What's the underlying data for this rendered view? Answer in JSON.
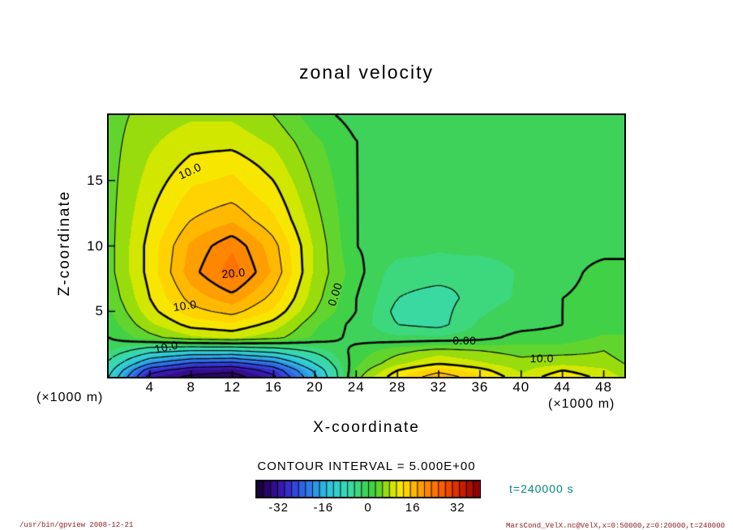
{
  "title": "zonal velocity",
  "colors": {
    "text": "#000000",
    "plot_border": "#000000",
    "contour_line": "#000000",
    "time_label": "#008878",
    "footer": "#8b2020",
    "background": "#ffffff"
  },
  "legend": {
    "contour_interval_text": "CONTOUR INTERVAL =  5.000E+00",
    "time_label": "t=240000 s"
  },
  "footer": {
    "left": "/usr/bin/gpview  2008-12-21",
    "right": "MarsCond_VelX.nc@VelX,x=0:50000,z=0:20000,t=240000"
  },
  "chart_data": {
    "type": "heatmap",
    "subtype": "filled-contour",
    "title": "zonal velocity",
    "xlabel": "X-coordinate",
    "ylabel": "Z-coordinate",
    "x_unit_label": "(×1000 m)",
    "z_unit_label": "(×1000 m)",
    "xlim": [
      0,
      50
    ],
    "zlim": [
      0,
      20
    ],
    "x_ticks": [
      4,
      8,
      12,
      16,
      20,
      24,
      28,
      32,
      36,
      40,
      44,
      48
    ],
    "z_ticks": [
      5,
      10,
      15
    ],
    "contour_interval": 5.0,
    "tone_min": -40,
    "tone_max": 40,
    "tone_step": 2.5,
    "colorbar_ticks": [
      -32,
      -16,
      0,
      16,
      32
    ],
    "x": [
      0,
      4,
      8,
      12,
      16,
      20,
      24,
      28,
      32,
      36,
      40,
      44,
      48,
      50
    ],
    "z": [
      0,
      0.5,
      1,
      2,
      3,
      4,
      5,
      6,
      8,
      10,
      12,
      14,
      16,
      18,
      20
    ],
    "values": [
      [
        -10,
        -32,
        -36,
        -37,
        -31,
        -16,
        4,
        12,
        17,
        13,
        8,
        12,
        9,
        7
      ],
      [
        -8,
        -28,
        -33,
        -34,
        -28,
        -14,
        3,
        10,
        14,
        11,
        7,
        10,
        8,
        6
      ],
      [
        -6,
        -20,
        -26,
        -27,
        -22,
        -10,
        2,
        7,
        10,
        8,
        6,
        7,
        6,
        5
      ],
      [
        -2,
        -8,
        -10,
        -10,
        -8,
        -4,
        1,
        4,
        6,
        5,
        4,
        4,
        5,
        4
      ],
      [
        0,
        4,
        7,
        8,
        6,
        2,
        -1,
        -2,
        -2,
        -1,
        1,
        1,
        3,
        3
      ],
      [
        1,
        7,
        11,
        12,
        9,
        3,
        -1,
        -5,
        -6,
        -2,
        -1,
        0,
        1,
        1
      ],
      [
        2,
        9,
        14,
        16,
        12,
        5,
        0,
        -6,
        -6,
        -3,
        -1,
        0,
        1,
        1
      ],
      [
        3,
        10,
        16,
        19,
        14,
        6,
        0,
        -5,
        -6,
        -4,
        -2,
        0,
        1,
        1
      ],
      [
        4,
        11,
        19,
        24,
        17,
        7,
        1,
        -4,
        -4,
        -5,
        -2,
        -1,
        1,
        1
      ],
      [
        4,
        11,
        18,
        22,
        16,
        7,
        0,
        -1,
        -2,
        -1,
        -1,
        -1,
        -1,
        -1
      ],
      [
        4,
        10,
        15,
        17,
        13,
        6,
        0,
        -1,
        -1,
        -1,
        -1,
        -1,
        -1,
        -1
      ],
      [
        4,
        9,
        13,
        14,
        11,
        5,
        0,
        -1,
        -1,
        -1,
        -1,
        -1,
        -1,
        -1
      ],
      [
        4,
        8,
        11,
        12,
        9,
        4,
        0,
        -1,
        -1,
        -1,
        -1,
        -1,
        -1,
        -1
      ],
      [
        4,
        7,
        9,
        9,
        7,
        3,
        0,
        -1,
        -1,
        -1,
        -1,
        -1,
        -1,
        -1
      ],
      [
        4,
        6,
        7,
        7,
        5,
        1,
        -1,
        -1,
        -1,
        -1,
        -1,
        -1,
        -1,
        -1
      ]
    ],
    "contour_labels": [
      {
        "text": "10.0",
        "x": 7.9,
        "z": 15.7,
        "rot": -25
      },
      {
        "text": "20.0",
        "x": 12.1,
        "z": 7.9,
        "rot": -5
      },
      {
        "text": "10.0",
        "x": 7.4,
        "z": 5.45,
        "rot": -8
      },
      {
        "text": "0.00",
        "x": 21.9,
        "z": 6.3,
        "rot": -72
      },
      {
        "text": "10.0",
        "x": 5.6,
        "z": 2.3,
        "rot": -12
      },
      {
        "text": "0.00",
        "x": 34.5,
        "z": 2.8,
        "rot": 0
      },
      {
        "text": "10.0",
        "x": 42.0,
        "z": 1.4,
        "rot": 0
      }
    ],
    "colormap": [
      {
        "v": -40,
        "c": "#10022a"
      },
      {
        "v": -35,
        "c": "#31077a"
      },
      {
        "v": -30,
        "c": "#3b1fc0"
      },
      {
        "v": -25,
        "c": "#2f55e4"
      },
      {
        "v": -20,
        "c": "#2e8ae8"
      },
      {
        "v": -15,
        "c": "#2fc0e0"
      },
      {
        "v": -10,
        "c": "#35d6c8"
      },
      {
        "v": -5,
        "c": "#3cda96"
      },
      {
        "v": -2.5,
        "c": "#3fd566"
      },
      {
        "v": 0,
        "c": "#3dd04f"
      },
      {
        "v": 2.5,
        "c": "#44d23e"
      },
      {
        "v": 5,
        "c": "#7ed91c"
      },
      {
        "v": 7.5,
        "c": "#b4e000"
      },
      {
        "v": 10,
        "c": "#f0ee00"
      },
      {
        "v": 12.5,
        "c": "#ffe000"
      },
      {
        "v": 15,
        "c": "#ffc700"
      },
      {
        "v": 17.5,
        "c": "#ffab00"
      },
      {
        "v": 20,
        "c": "#ff9100"
      },
      {
        "v": 25,
        "c": "#ff6a00"
      },
      {
        "v": 30,
        "c": "#ea3d00"
      },
      {
        "v": 35,
        "c": "#bd1400"
      },
      {
        "v": 40,
        "c": "#7e0000"
      }
    ]
  }
}
